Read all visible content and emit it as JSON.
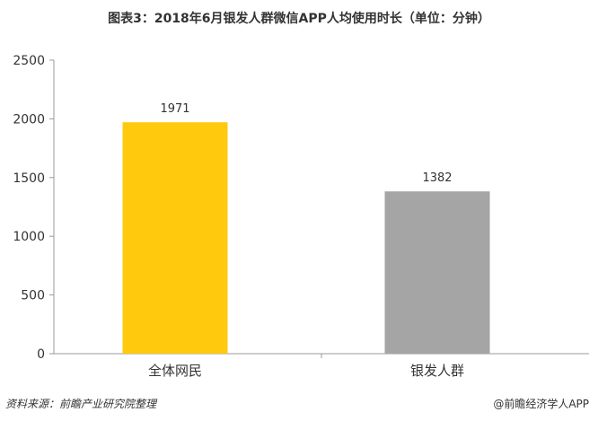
{
  "title": "图表3：2018年6月银发人群微信APP人均使用时长（单位：分钟）",
  "source": "资料来源：前瞻产业研究院整理",
  "credit": "@前瞻经济学人APP",
  "chart_data": {
    "type": "bar",
    "title": "图表3：2018年6月银发人群微信APP人均使用时长（单位：分钟）",
    "categories": [
      "全体网民",
      "银发人群"
    ],
    "values": [
      1971,
      1382
    ],
    "colors": [
      "#FFC90E",
      "#A5A5A5"
    ],
    "ylim": [
      0,
      2500
    ],
    "yticks": [
      0,
      500,
      1000,
      1500,
      2000,
      2500
    ],
    "grid": false,
    "data_labels": true
  }
}
